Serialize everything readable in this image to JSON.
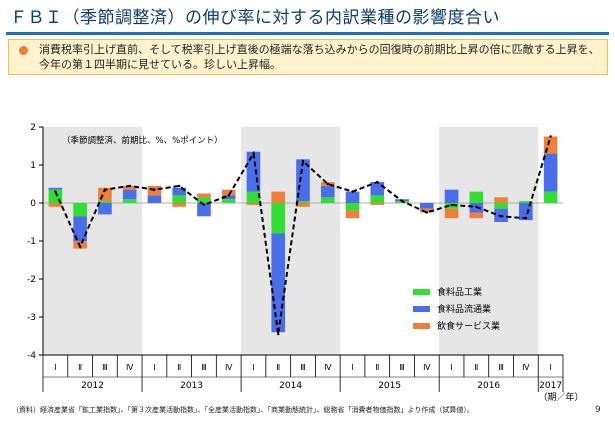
{
  "title": "ＦＢＩ（季節調整済）の伸び率に対する内訳業種の影響度合い",
  "callout": {
    "text": "消費税率引上げ直前、そして税率引上げ直後の極端な落ち込みからの回復時の前期比上昇の倍に匹敵する上昇を、今年の第１四半期に見せている。珍しい上昇幅。"
  },
  "colors": {
    "food_manufacturing": "#33dd33",
    "food_distribution": "#4a6ee8",
    "food_service": "#f07f3c",
    "shade": "#e6e6e6"
  },
  "chart_data": {
    "type": "bar",
    "stacked": true,
    "note": "（季節調整済、前期比、%、%ポイント）",
    "x_tick_labels": [
      "Ⅰ",
      "Ⅱ",
      "Ⅲ",
      "Ⅳ",
      "Ⅰ",
      "Ⅱ",
      "Ⅲ",
      "Ⅳ",
      "Ⅰ",
      "Ⅱ",
      "Ⅲ",
      "Ⅳ",
      "Ⅰ",
      "Ⅱ",
      "Ⅲ",
      "Ⅳ",
      "Ⅰ",
      "Ⅱ",
      "Ⅲ",
      "Ⅳ",
      "Ⅰ"
    ],
    "years": [
      "2012",
      "2013",
      "2014",
      "2015",
      "2016",
      "2017"
    ],
    "xlabel": "（期／年）",
    "ylim": [
      -4,
      2
    ],
    "yticks": [
      2,
      1,
      0,
      -1,
      -2,
      -3,
      -4
    ],
    "series": [
      {
        "name": "食料品工業",
        "color_key": "food_manufacturing",
        "values": [
          0.35,
          -0.35,
          0.05,
          0.1,
          0.0,
          0.2,
          0.15,
          0.1,
          0.3,
          -0.8,
          0.05,
          0.15,
          -0.2,
          0.2,
          0.05,
          0.0,
          -0.15,
          0.3,
          -0.15,
          0.05,
          0.3
        ]
      },
      {
        "name": "食料品流通業",
        "color_key": "food_distribution",
        "values": [
          0.05,
          -0.65,
          -0.3,
          0.25,
          0.2,
          0.2,
          -0.35,
          0.1,
          1.05,
          -2.6,
          1.1,
          0.3,
          0.3,
          0.35,
          0.05,
          -0.15,
          0.35,
          -0.25,
          -0.35,
          -0.45,
          1.0
        ]
      },
      {
        "name": "飲食サービス業",
        "color_key": "food_service",
        "values": [
          -0.1,
          -0.2,
          0.35,
          0.1,
          0.25,
          -0.1,
          0.1,
          0.15,
          -0.05,
          0.3,
          -0.1,
          0.1,
          -0.2,
          -0.05,
          0.0,
          -0.1,
          -0.25,
          -0.15,
          0.15,
          0.0,
          0.45
        ]
      }
    ],
    "line": {
      "name": "FBI（季節調整済）前期比",
      "values": [
        0.3,
        -1.15,
        0.35,
        0.45,
        0.35,
        0.45,
        -0.05,
        0.2,
        1.3,
        -3.45,
        1.1,
        0.5,
        0.3,
        0.55,
        0.05,
        -0.25,
        -0.05,
        -0.1,
        -0.35,
        -0.4,
        1.75
      ]
    },
    "shaded_years": [
      "2012",
      "2014",
      "2016"
    ],
    "legend_position": "bottom-right"
  },
  "footer": "（資料）経済産業省「鉱工業指数」、「第３次産業活動指数」、「全産業活動指数」、「商業動態統計」、総務省「消費者物価指数」より作成（試算値）。",
  "page_number": "9"
}
